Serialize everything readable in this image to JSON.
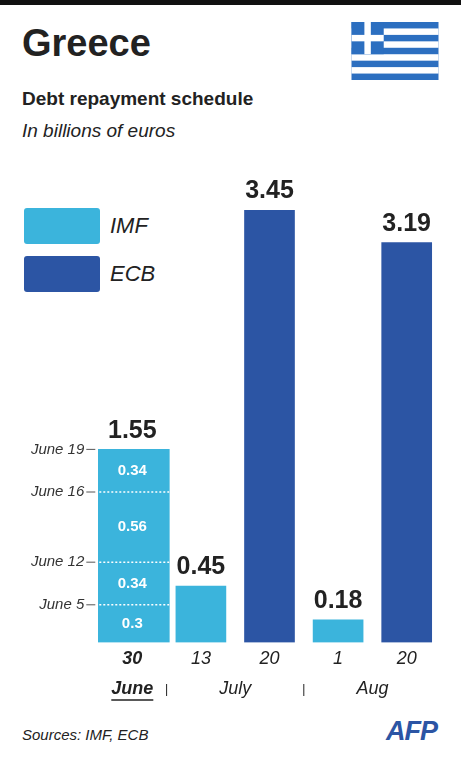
{
  "chart_data": {
    "type": "bar",
    "title": "Greece",
    "subtitle": "Debt repayment schedule",
    "units_label": "In billions of euros",
    "source": "Sources: IMF, ECB",
    "credit": "AFP",
    "categories": [
      "30",
      "13",
      "20",
      "1",
      "20"
    ],
    "x_groups": [
      {
        "label": "June",
        "count": 1
      },
      {
        "label": "July",
        "count": 2
      },
      {
        "label": "Aug",
        "count": 2
      }
    ],
    "series": [
      {
        "name": "IMF",
        "color": "#3bb4dc",
        "values": [
          1.55,
          0.45,
          null,
          0.18,
          null
        ],
        "segments": [
          [
            {
              "label": "June 5",
              "value": 0.3
            },
            {
              "label": "June 12",
              "value": 0.34
            },
            {
              "label": "June 16",
              "value": 0.56
            },
            {
              "label": "June 19",
              "value": 0.34
            }
          ],
          null,
          null,
          null,
          null
        ]
      },
      {
        "name": "ECB",
        "color": "#2c55a4",
        "values": [
          null,
          null,
          3.45,
          null,
          3.19
        ]
      }
    ],
    "stacked": true,
    "data_labels": true,
    "ylim": [
      0,
      3.45
    ],
    "tick_labels": "x",
    "grid": false,
    "legend": "upper left"
  }
}
